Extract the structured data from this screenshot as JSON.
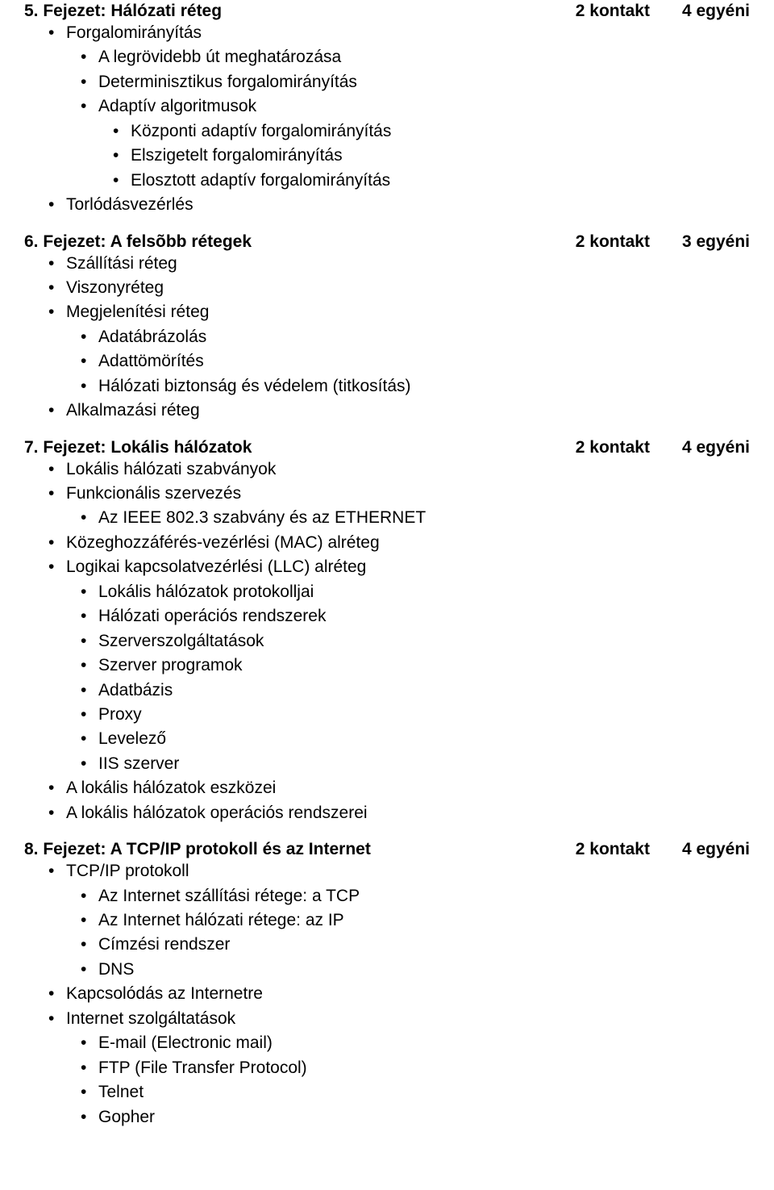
{
  "doc": {
    "font_family": "Arial",
    "font_size_pt": 16,
    "text_color": "#000000",
    "background_color": "#ffffff"
  },
  "chapters": [
    {
      "title": "5. Fejezet: Hálózati réteg",
      "kontakt": "2 kontakt",
      "egyeni": "4 egyéni",
      "items": [
        {
          "text": "Forgalomirányítás",
          "children": [
            {
              "text": "A legrövidebb út meghatározása"
            },
            {
              "text": "Determinisztikus forgalomirányítás"
            },
            {
              "text": "Adaptív algoritmusok",
              "children": [
                {
                  "text": "Központi adaptív forgalomirányítás"
                },
                {
                  "text": "Elszigetelt forgalomirányítás"
                },
                {
                  "text": "Elosztott adaptív forgalomirányítás"
                }
              ]
            }
          ]
        },
        {
          "text": "Torlódásvezérlés"
        }
      ]
    },
    {
      "title": "6. Fejezet: A felsõbb rétegek",
      "kontakt": "2 kontakt",
      "egyeni": "3 egyéni",
      "items": [
        {
          "text": "Szállítási réteg"
        },
        {
          "text": "Viszonyréteg"
        },
        {
          "text": "Megjelenítési réteg",
          "children": [
            {
              "text": "Adatábrázolás"
            },
            {
              "text": "Adattömörítés"
            },
            {
              "text": "Hálózati biztonság és védelem (titkosítás)"
            }
          ]
        },
        {
          "text": "Alkalmazási réteg"
        }
      ]
    },
    {
      "title": "7. Fejezet: Lokális hálózatok",
      "kontakt": "2 kontakt",
      "egyeni": "4 egyéni",
      "items": [
        {
          "text": "Lokális hálózati szabványok"
        },
        {
          "text": "Funkcionális szervezés",
          "children": [
            {
              "text": "Az IEEE 802.3 szabvány és az ETHERNET"
            }
          ]
        },
        {
          "text": "Közeghozzáférés-vezérlési (MAC) alréteg"
        },
        {
          "text": "Logikai kapcsolatvezérlési (LLC) alréteg",
          "children": [
            {
              "text": "Lokális hálózatok protokolljai"
            },
            {
              "text": "Hálózati operációs rendszerek"
            },
            {
              "text": "Szerverszolgáltatások"
            },
            {
              "text": "Szerver programok"
            },
            {
              "text": "Adatbázis"
            },
            {
              "text": "Proxy"
            },
            {
              "text": "Levelező"
            },
            {
              "text": "IIS szerver"
            }
          ]
        },
        {
          "text": "A lokális hálózatok eszközei"
        },
        {
          "text": "A lokális hálózatok operációs rendszerei"
        }
      ]
    },
    {
      "title": "8. Fejezet: A TCP/IP protokoll és az Internet",
      "kontakt": "2 kontakt",
      "egyeni": "4 egyéni",
      "items": [
        {
          "text": "TCP/IP protokoll",
          "children": [
            {
              "text": "Az Internet szállítási rétege: a TCP"
            },
            {
              "text": "Az Internet hálózati rétege: az IP"
            },
            {
              "text": "Címzési rendszer"
            },
            {
              "text": "DNS"
            }
          ]
        },
        {
          "text": "Kapcsolódás az Internetre"
        },
        {
          "text": "Internet szolgáltatások",
          "children": [
            {
              "text": "E-mail (Electronic mail)"
            },
            {
              "text": "FTP (File Transfer Protocol)"
            },
            {
              "text": "Telnet"
            },
            {
              "text": "Gopher"
            }
          ]
        }
      ]
    }
  ]
}
